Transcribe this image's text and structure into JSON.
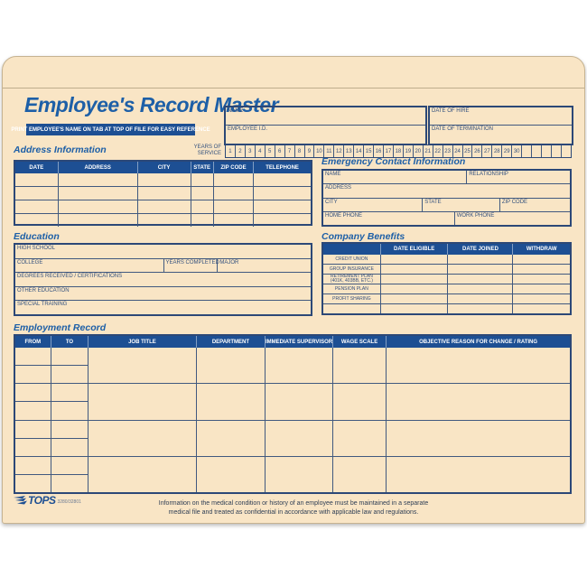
{
  "colors": {
    "manila": "#f9e5c5",
    "header_blue": "#1d4f93",
    "title_blue": "#1d5fa7",
    "label_blue": "#33517e",
    "line": "#41597f",
    "line_strong": "#2c4877"
  },
  "folder": {
    "title": "Employee's Record Master",
    "banner": "PRINT EMPLOYEE'S NAME ON TAB AT TOP OF FILE FOR EASY REFERENCE",
    "id_box": {
      "name_label": "NAME",
      "employee_id_label": "EMPLOYEE I.D."
    },
    "dates_box": {
      "hire_label": "DATE OF HIRE",
      "termination_label": "DATE OF TERMINATION"
    },
    "years_of_service": {
      "label_line1": "YEARS OF",
      "label_line2": "SERVICE",
      "cells": [
        "1",
        "2",
        "3",
        "4",
        "5",
        "6",
        "7",
        "8",
        "9",
        "10",
        "11",
        "12",
        "13",
        "14",
        "15",
        "16",
        "17",
        "18",
        "19",
        "20",
        "21",
        "22",
        "23",
        "24",
        "25",
        "26",
        "27",
        "28",
        "29",
        "30",
        "",
        "",
        "",
        "",
        ""
      ]
    }
  },
  "address_information": {
    "heading": "Address Information",
    "columns": [
      "DATE",
      "ADDRESS",
      "CITY",
      "STATE",
      "ZIP CODE",
      "TELEPHONE"
    ],
    "blank_rows": [
      "",
      "",
      "",
      ""
    ]
  },
  "emergency_contact": {
    "heading": "Emergency Contact Information",
    "name_label": "NAME",
    "relationship_label": "RELATIONSHIP",
    "address_label": "ADDRESS",
    "city_label": "CITY",
    "state_label": "STATE",
    "zip_label": "ZIP CODE",
    "home_phone_label": "HOME PHONE",
    "work_phone_label": "WORK PHONE"
  },
  "education": {
    "heading": "Education",
    "high_school_label": "HIGH SCHOOL",
    "college_label": "COLLEGE",
    "years_completed_label": "YEARS COMPLETED",
    "major_label": "MAJOR",
    "degrees_label": "DEGREES RECEIVED / CERTIFICATIONS",
    "other_education_label": "OTHER EDUCATION",
    "special_training_label": "SPECIAL TRAINING"
  },
  "company_benefits": {
    "heading": "Company Benefits",
    "columns": [
      "DATE ELIGIBLE",
      "DATE JOINED",
      "WITHDRAW"
    ],
    "row_labels": [
      "CREDIT UNION",
      "GROUP INSURANCE",
      "RETIREMENT PLAN (401K, 403BB, ETC.)",
      "PENSION PLAN",
      "PROFIT SHARING",
      ""
    ]
  },
  "employment_record": {
    "heading": "Employment Record",
    "columns": [
      "FROM",
      "TO",
      "JOB TITLE",
      "DEPARTMENT",
      "IMMEDIATE SUPERVISOR",
      "WAGE SCALE",
      "OBJECTIVE REASON FOR CHANGE / RATING"
    ],
    "blank_rows": [
      "",
      "",
      "",
      ""
    ]
  },
  "footer": {
    "brand": "TOPS",
    "product_code": "3280/32801",
    "notice_line1": "Information on the medical condition or history of an employee must be maintained in a separate",
    "notice_line2": "medical file and treated as confidential in accordance with applicable law and regulations."
  }
}
